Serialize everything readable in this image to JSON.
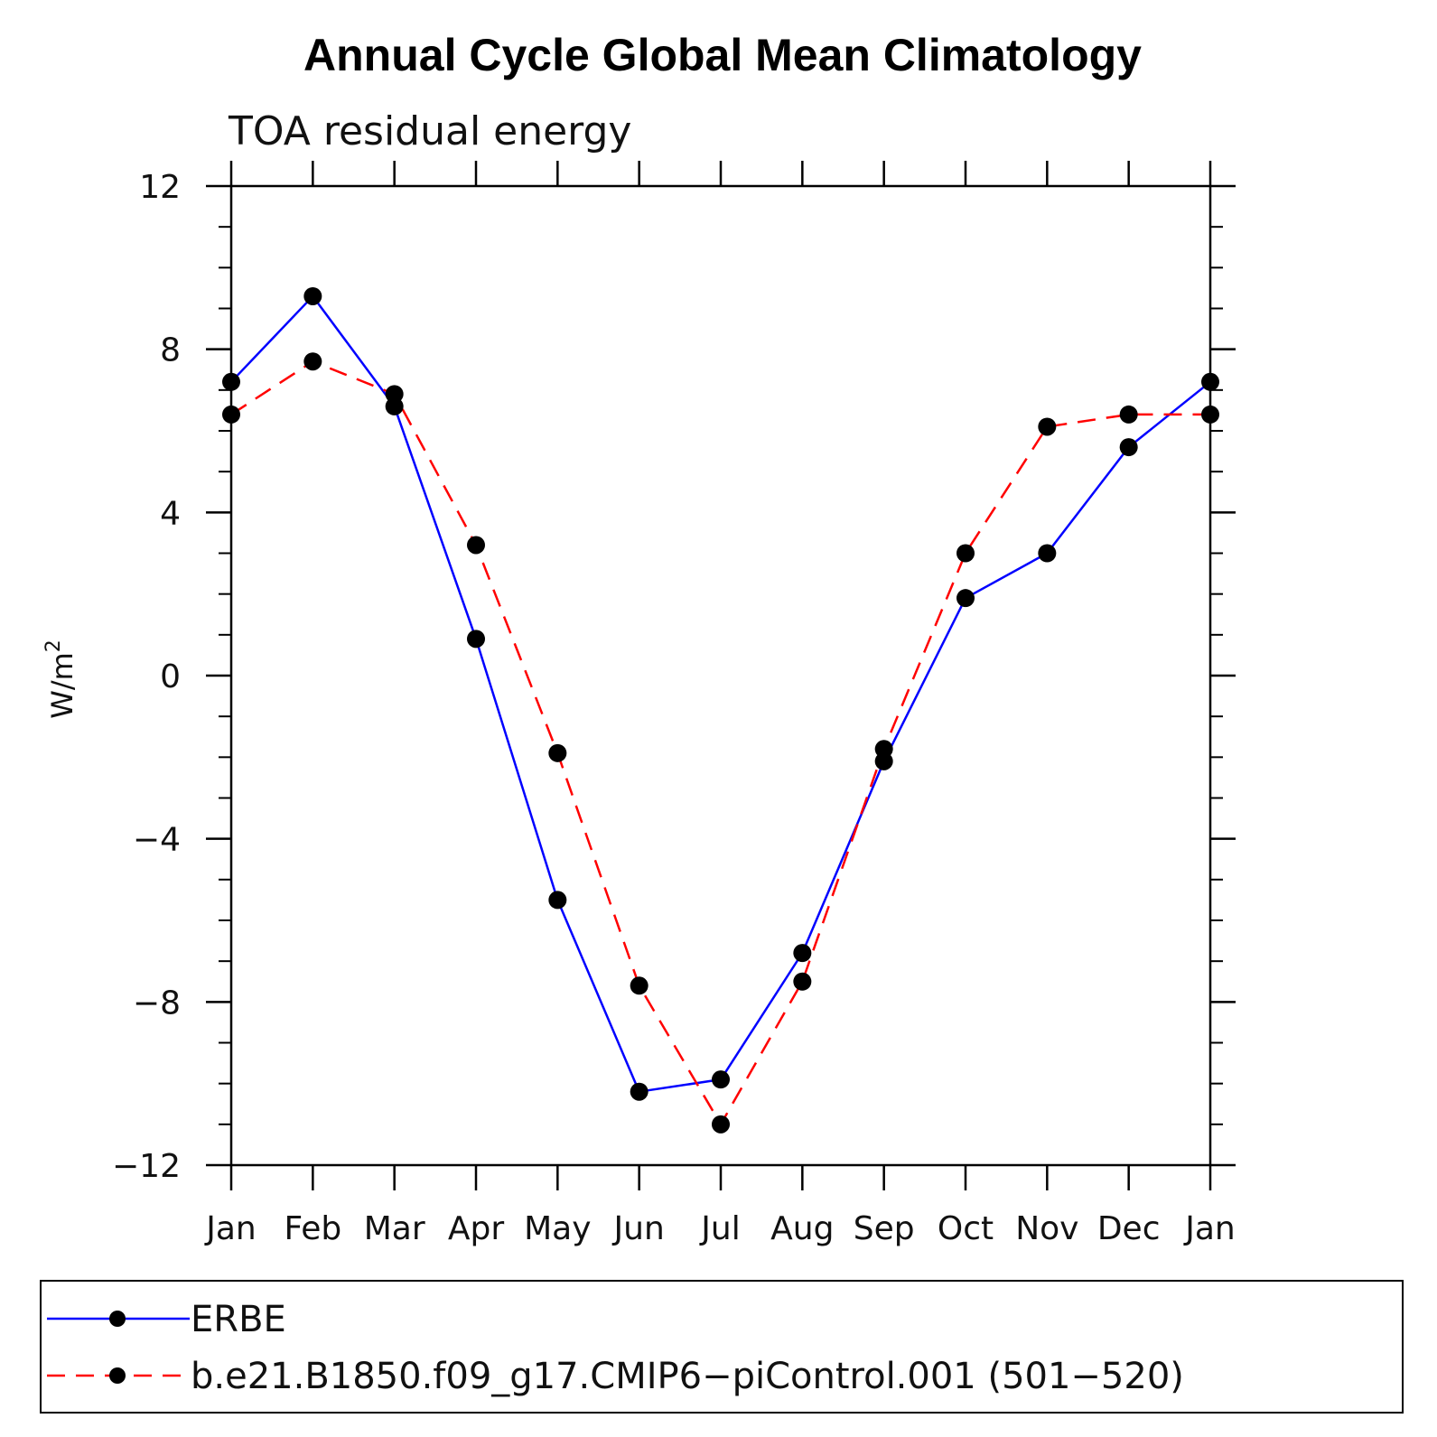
{
  "chart_data": {
    "type": "line",
    "title": "Annual Cycle Global Mean Climatology",
    "subtitle": "TOA residual energy",
    "ylabel": "W/m",
    "ylabel_superscript": "2",
    "xlabel": "",
    "categories": [
      "Jan",
      "Feb",
      "Mar",
      "Apr",
      "May",
      "Jun",
      "Jul",
      "Aug",
      "Sep",
      "Oct",
      "Nov",
      "Dec",
      "Jan"
    ],
    "ylim": [
      -12,
      12
    ],
    "yticks": [
      -12,
      -8,
      -4,
      0,
      4,
      8,
      12
    ],
    "ytick_labels": [
      "−12",
      "−8",
      "−4",
      "0",
      "4",
      "8",
      "12"
    ],
    "series": [
      {
        "name": "ERBE",
        "color": "#0000ff",
        "style": "solid",
        "values": [
          7.2,
          9.3,
          6.6,
          0.9,
          -5.5,
          -10.2,
          -9.9,
          -6.8,
          -2.1,
          1.9,
          3.0,
          5.6,
          7.2
        ]
      },
      {
        "name": "b.e21.B1850.f09_g17.CMIP6−piControl.001 (501−520)",
        "color": "#ff0000",
        "style": "dashed",
        "values": [
          6.4,
          7.7,
          6.9,
          3.2,
          -1.9,
          -7.6,
          -11.0,
          -7.5,
          -1.8,
          3.0,
          6.1,
          6.4,
          6.4
        ]
      }
    ],
    "legend_position": "bottom",
    "marker_color": "#000000"
  }
}
